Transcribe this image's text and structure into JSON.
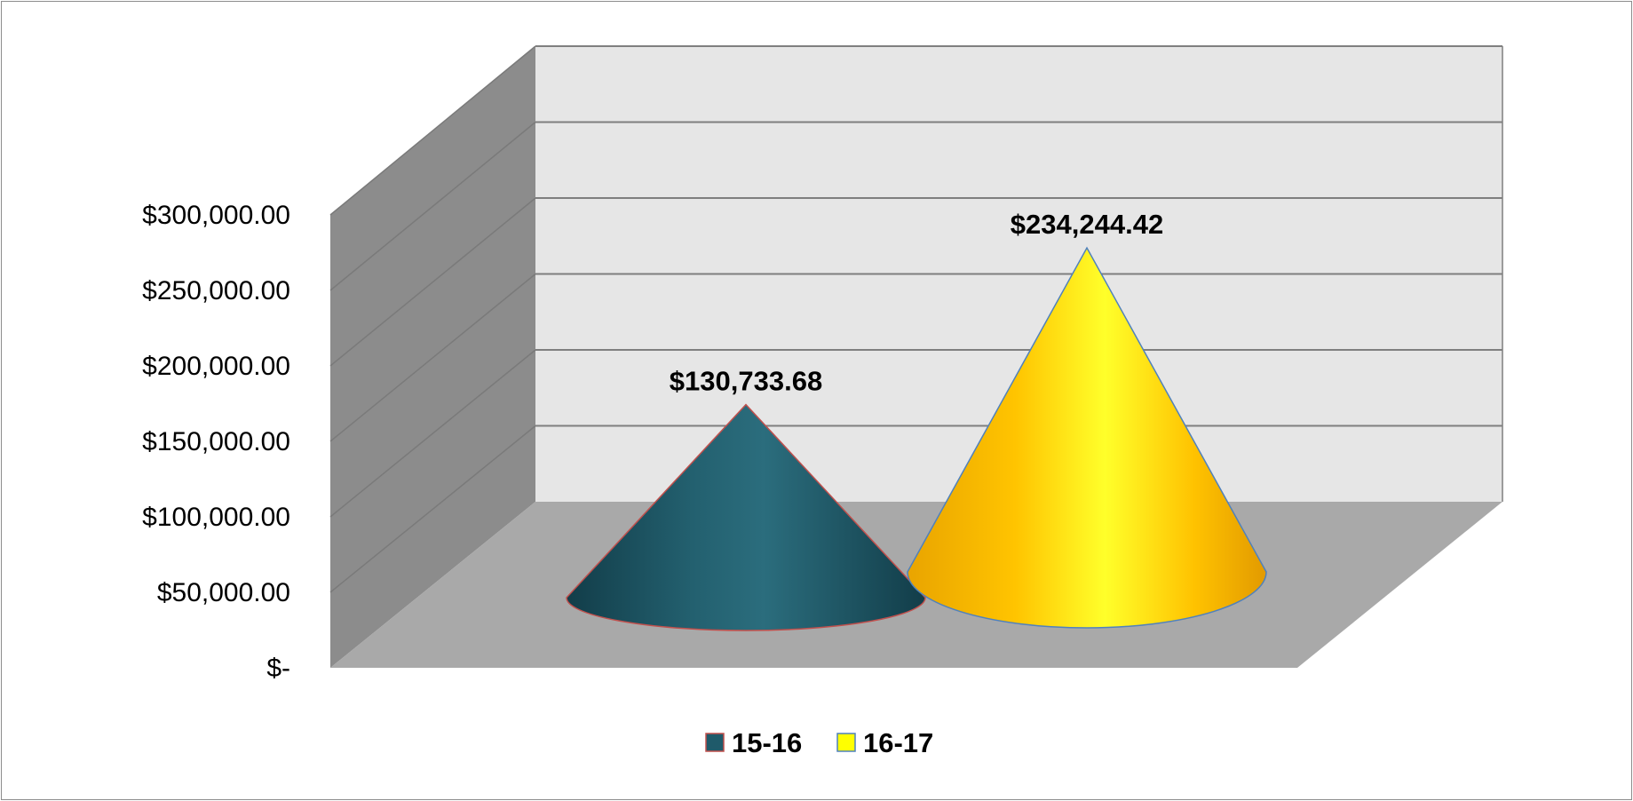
{
  "chart_data": {
    "type": "bar",
    "shape": "3d-cone",
    "categories": [
      ""
    ],
    "series": [
      {
        "name": "15-16",
        "values": [
          130733.68
        ],
        "data_label": "$130,733.68",
        "color": "#1f5a6a"
      },
      {
        "name": "16-17",
        "values": [
          234244.42
        ],
        "data_label": "$234,244.42",
        "color": "#ffcc00"
      }
    ],
    "title": "",
    "xlabel": "",
    "ylabel": "",
    "ylim": [
      0,
      300000
    ],
    "y_ticks": [
      0,
      50000,
      100000,
      150000,
      200000,
      250000,
      300000
    ],
    "y_tick_labels": [
      "$-",
      "$50,000.00",
      "$100,000.00",
      "$150,000.00",
      "$200,000.00",
      "$250,000.00",
      "$300,000.00"
    ],
    "grid": true,
    "legend_position": "bottom",
    "colors": {
      "back_wall": "#e6e6e6",
      "side_wall": "#8c8c8c",
      "floor": "#a9a9a9",
      "gridline": "#7f7f7f"
    }
  }
}
